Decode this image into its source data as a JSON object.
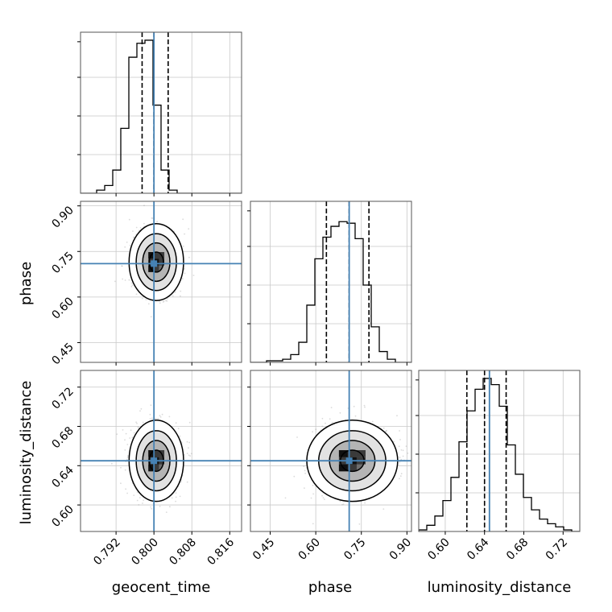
{
  "chart_data": {
    "type": "corner",
    "parameters": [
      "geocent_time",
      "phase",
      "luminosity_distance"
    ],
    "axis_labels": {
      "x": [
        "geocent_time",
        "phase",
        "luminosity_distance"
      ],
      "y": [
        "",
        "phase",
        "luminosity_distance"
      ]
    },
    "ranges": {
      "geocent_time": [
        0.7845,
        0.8185
      ],
      "phase": [
        0.385,
        0.915
      ],
      "luminosity_distance": [
        0.573,
        0.737
      ]
    },
    "tick_labels": {
      "geocent_time": [
        "0.792",
        "0.800",
        "0.808",
        "0.816"
      ],
      "phase": [
        "0.45",
        "0.60",
        "0.75",
        "0.90"
      ],
      "luminosity_distance": [
        "0.60",
        "0.64",
        "0.68",
        "0.72"
      ]
    },
    "tick_values": {
      "geocent_time": [
        0.792,
        0.8,
        0.808,
        0.816
      ],
      "phase": [
        0.45,
        0.6,
        0.75,
        0.9
      ],
      "luminosity_distance": [
        0.6,
        0.64,
        0.68,
        0.72
      ]
    },
    "truths": {
      "geocent_time": 0.8,
      "phase": 0.71,
      "luminosity_distance": 0.645
    },
    "quantiles": {
      "geocent_time": [
        0.7975,
        0.8,
        0.803
      ],
      "phase": [
        0.635,
        0.71,
        0.775
      ],
      "luminosity_distance": [
        0.622,
        0.64,
        0.662
      ]
    },
    "histograms": {
      "geocent_time": {
        "edges": [
          0.7845,
          0.7862,
          0.7879,
          0.7896,
          0.7913,
          0.793,
          0.7947,
          0.7964,
          0.7981,
          0.7998,
          0.8015,
          0.8032,
          0.8049,
          0.8066,
          0.8083,
          0.81,
          0.8117,
          0.8134,
          0.8151,
          0.8168,
          0.8185
        ],
        "counts": [
          0,
          0,
          2,
          5,
          15,
          42,
          88,
          97,
          99,
          57,
          15,
          2,
          0,
          0,
          0,
          0,
          0,
          0,
          0,
          0
        ],
        "max": 100
      },
      "phase": {
        "edges": [
          0.385,
          0.4115,
          0.438,
          0.4645,
          0.491,
          0.5175,
          0.544,
          0.5705,
          0.597,
          0.6235,
          0.65,
          0.6765,
          0.703,
          0.7295,
          0.756,
          0.7825,
          0.809,
          0.8355,
          0.862,
          0.8885,
          0.915
        ],
        "counts": [
          0,
          0,
          1,
          1,
          2,
          5,
          13,
          37,
          67,
          81,
          88,
          91,
          90,
          80,
          50,
          23,
          7,
          2,
          0,
          0
        ],
        "max": 100
      },
      "luminosity_distance": {
        "edges": [
          0.573,
          0.5812,
          0.5894,
          0.5976,
          0.6058,
          0.614,
          0.6222,
          0.6304,
          0.6386,
          0.6468,
          0.655,
          0.6632,
          0.6714,
          0.6796,
          0.6878,
          0.696,
          0.7042,
          0.7124,
          0.7206,
          0.7288,
          0.737
        ],
        "counts": [
          1,
          4,
          10,
          20,
          35,
          58,
          78,
          92,
          99,
          95,
          81,
          56,
          37,
          22,
          14,
          8,
          5,
          3,
          1,
          0
        ],
        "max": 100
      }
    },
    "density_2d": [
      {
        "x": "geocent_time",
        "y": "phase",
        "center": [
          0.8005,
          0.715
        ],
        "sigma": [
          0.0025,
          0.055
        ]
      },
      {
        "x": "geocent_time",
        "y": "luminosity_distance",
        "center": [
          0.8005,
          0.645
        ],
        "sigma": [
          0.0025,
          0.018
        ]
      },
      {
        "x": "phase",
        "y": "luminosity_distance",
        "center": [
          0.72,
          0.645
        ],
        "sigma": [
          0.065,
          0.018
        ]
      }
    ],
    "colors": {
      "truth": "#4682b4",
      "hist": "#000000",
      "grid": "#c8c8c8",
      "scatter": "#999999"
    },
    "grid": true
  }
}
